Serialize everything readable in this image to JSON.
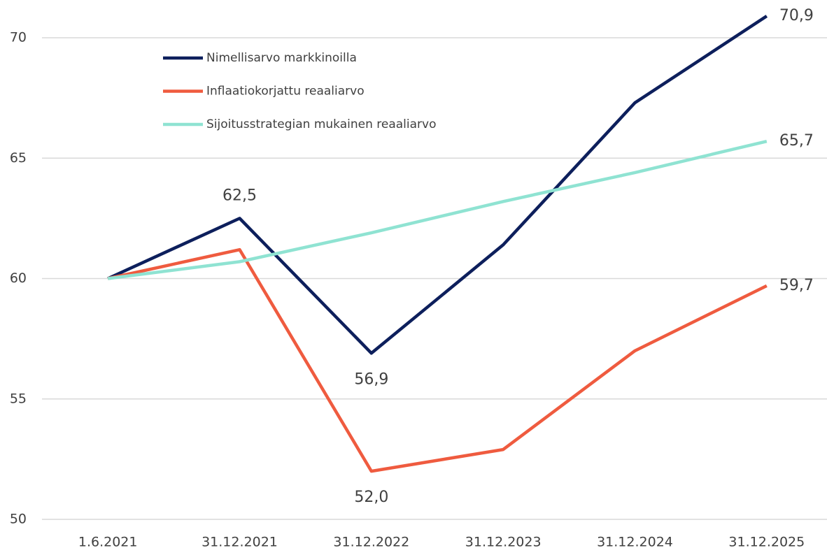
{
  "chart_data": {
    "type": "line",
    "categories": [
      "1.6.2021",
      "31.12.2021",
      "31.12.2022",
      "31.12.2023",
      "31.12.2024",
      "31.12.2025"
    ],
    "series": [
      {
        "name": "Nimellisarvo markkinoilla",
        "color": "#0d1f5c",
        "values": [
          60,
          62.5,
          56.9,
          61.4,
          67.3,
          70.9
        ],
        "value_labels": [
          null,
          "62,5",
          "56,9",
          null,
          null,
          "70,9"
        ]
      },
      {
        "name": "Inflaatiokorjattu reaaliarvo",
        "color": "#ef5b3f",
        "values": [
          60,
          61.2,
          52.0,
          52.9,
          57.0,
          59.7
        ],
        "value_labels": [
          null,
          null,
          "52,0",
          null,
          null,
          "59,7"
        ]
      },
      {
        "name": "Sijoitusstrategian mukainen reaaliarvo",
        "color": "#8fe3d2",
        "values": [
          60,
          60.7,
          61.9,
          63.2,
          64.4,
          65.7
        ],
        "value_labels": [
          null,
          null,
          null,
          null,
          null,
          "65,7"
        ]
      }
    ],
    "ylim": [
      50,
      70
    ],
    "yticks": [
      50,
      55,
      60,
      65,
      70
    ],
    "grid": true,
    "legend": "top-left"
  }
}
